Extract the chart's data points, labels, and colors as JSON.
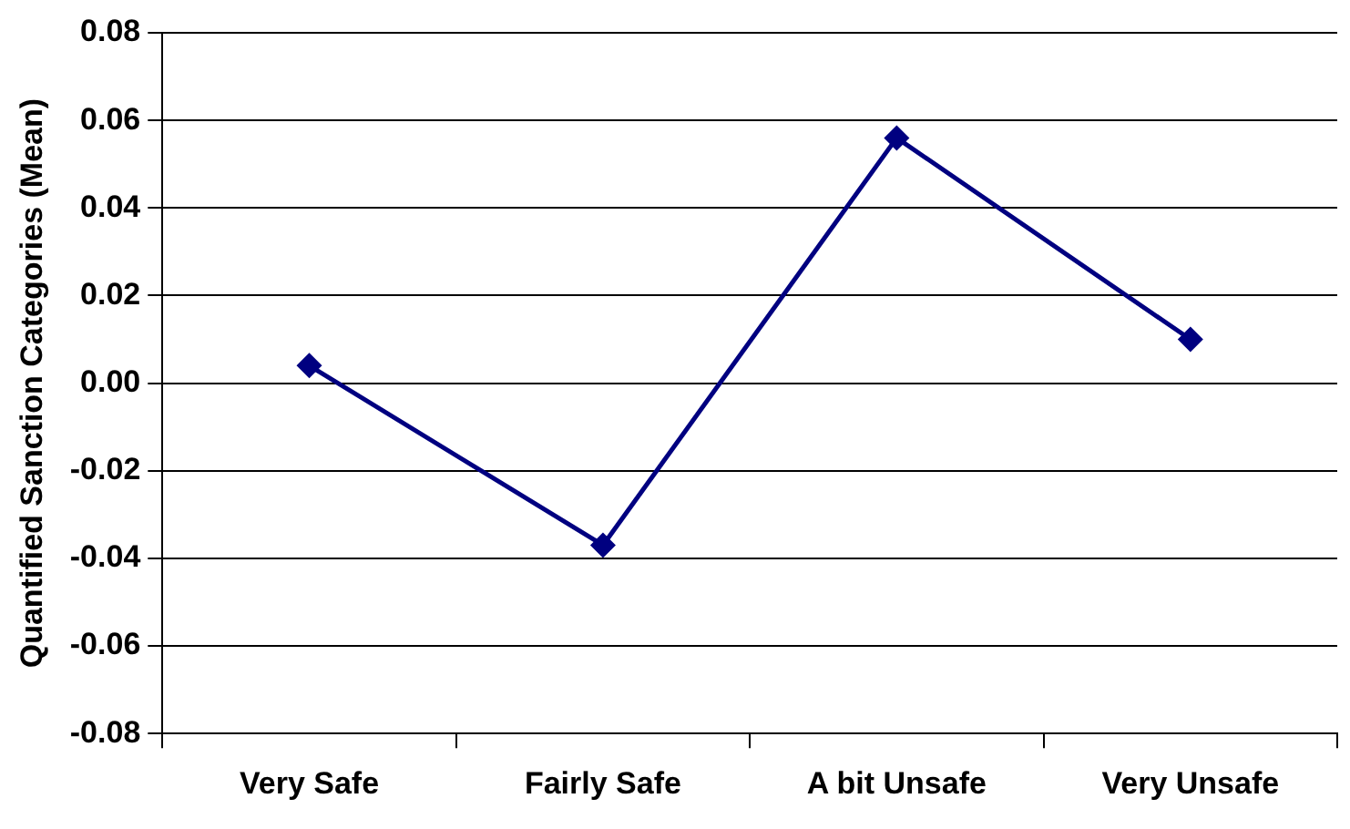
{
  "chart_data": {
    "type": "line",
    "ylabel": "Quantified Sanction Categories (Mean)",
    "categories": [
      "Very Safe",
      "Fairly Safe",
      "A bit Unsafe",
      "Very Unsafe"
    ],
    "series": [
      {
        "color": "#000080",
        "values": [
          0.004,
          -0.037,
          0.056,
          0.01
        ]
      }
    ],
    "ylim": [
      -0.08,
      0.08
    ],
    "yticks": [
      -0.08,
      -0.06,
      -0.04,
      -0.02,
      {
        "value": 0,
        "label": "0.00"
      },
      0.02,
      0.04,
      0.06,
      0.08
    ],
    "grid": "y",
    "legend": false,
    "marker": "diamond",
    "line_style": "solid"
  }
}
